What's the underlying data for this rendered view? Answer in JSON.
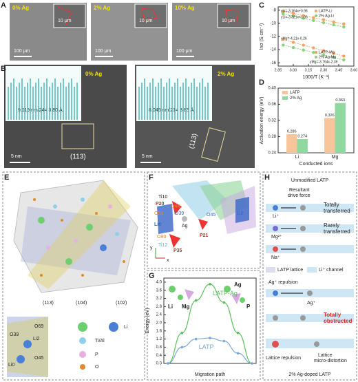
{
  "panels": {
    "letters": [
      "A",
      "B",
      "C",
      "D",
      "E",
      "F",
      "G",
      "H"
    ],
    "a": {
      "labels": [
        "0% Ag",
        "2% Ag",
        "10% Ag"
      ],
      "inset_scale": "10 μm",
      "scale": "100 μm"
    },
    "b": {
      "labels": [
        "0% Ag",
        "2% Ag"
      ],
      "spacing": [
        "9.119 nm/24= 3.80 Å",
        "8.046 nm/21= 3.83 Å"
      ],
      "scale": "5 nm",
      "plane": "(113)"
    },
    "e": {
      "planes": [
        "(113)",
        "(104)",
        "(102)"
      ],
      "atoms": [
        "O39",
        "Li2",
        "O69",
        "O45",
        "Li0"
      ],
      "legend": [
        "Li",
        "Ti/Al",
        "P",
        "O"
      ]
    },
    "f": {
      "atoms": [
        "Ti10",
        "P20",
        "O44",
        "O53",
        "Li0",
        "O39",
        "O45",
        "Li2",
        "Ag",
        "P21",
        "O90",
        "P35",
        "Ti12"
      ],
      "axes": [
        "y",
        "x"
      ]
    },
    "g": {
      "labels": [
        "Li",
        "Mg",
        "Ag",
        "P"
      ]
    },
    "h": {
      "title": "Unmodified LATP",
      "force": [
        "Resultant",
        "drive force"
      ],
      "ions": [
        "Li⁺",
        "Mg²⁺",
        "Na⁺"
      ],
      "outcomes": [
        [
          "Totally",
          "transferred"
        ],
        [
          "Rarely",
          "transferred"
        ]
      ],
      "legend": [
        "LATP lattice",
        "Li⁺ channel"
      ],
      "repulsion": "Ag⁺ repulsion",
      "ag": "Ag⁺",
      "obstructed": [
        "Totally",
        "obstructed"
      ],
      "lattice_repulsion": "Lattice repulsion",
      "distortion": [
        "Lattice",
        "micro-distortion"
      ],
      "footer": "2% Ag-doped LATP"
    }
  },
  "chart_data": [
    {
      "type": "scatter",
      "xlabel": "1000/T (K⁻¹)",
      "ylabel": "lnσ (S cm⁻¹)",
      "x": [
        2.9,
        3.0,
        3.1,
        3.2,
        3.3,
        3.4,
        3.5
      ],
      "xlim": [
        2.85,
        3.6
      ],
      "xticks": [
        2.85,
        {
          "value": 3.0,
          "label": "3.00"
        },
        3.15,
        {
          "value": 3.3,
          "label": "3.30"
        },
        3.45,
        {
          "value": 3.6,
          "label": "3.60"
        }
      ],
      "ylim": [
        -16.5,
        -7.5
      ],
      "yticks": [
        -16,
        -14,
        -12,
        -10,
        -8
      ],
      "annotations": [
        "yLi=-3.164x+0.98",
        "yLi=-3.321x+1.06",
        "yMg=-4.21x-0.26",
        "yMg=-3.764x-2.39"
      ],
      "series": [
        {
          "name": "LATP-Li",
          "color": "#f4a261",
          "values": [
            -8.2,
            -8.51,
            -8.83,
            -9.14,
            -9.46,
            -9.78,
            -10.09
          ]
        },
        {
          "name": "2% Ag-Li",
          "color": "#8ccf7e",
          "values": [
            -8.57,
            -8.9,
            -9.24,
            -9.57,
            -9.9,
            -10.23,
            -10.56
          ]
        },
        {
          "name": "LATP-Mg",
          "color": "#f4a261",
          "values": [
            -12.47,
            -12.89,
            -13.31,
            -13.73,
            -14.15,
            -14.57,
            -14.99
          ]
        },
        {
          "name": "2% Ag-Mg",
          "color": "#8ccf7e",
          "values": [
            -13.31,
            -13.68,
            -14.06,
            -14.43,
            -14.81,
            -15.19,
            -15.56
          ]
        }
      ]
    },
    {
      "type": "bar",
      "xlabel": "Conducted ions",
      "ylabel": "Activation energy (eV)",
      "categories": [
        "Li",
        "Mg"
      ],
      "ylim": [
        0.24,
        0.4
      ],
      "yticks": [
        0.24,
        0.28,
        0.32,
        0.36,
        {
          "value": 0.4,
          "label": "0.40"
        }
      ],
      "series": [
        {
          "name": "LATP",
          "color": "#f8c59a",
          "values": [
            0.286,
            0.326
          ]
        },
        {
          "name": "2% Ag",
          "color": "#8fd9a0",
          "values": [
            0.274,
            0.363
          ]
        }
      ]
    },
    {
      "type": "line",
      "xlabel": "Migration path",
      "ylabel": "Energy (eV)",
      "categories": [
        null,
        null,
        null,
        null,
        null,
        null,
        null
      ],
      "ylim": [
        0,
        4.2
      ],
      "yticks": [
        {
          "value": 0,
          "label": "0.0"
        },
        0.4,
        0.8,
        1.2,
        1.6,
        {
          "value": 2,
          "label": "2.0"
        },
        2.4,
        2.8,
        3.2,
        3.6,
        {
          "value": 4,
          "label": "4.0"
        }
      ],
      "series": [
        {
          "name": "LATP-Ag",
          "color": "#5cbf5c",
          "values": [
            0,
            1.5,
            3.1,
            3.9,
            3.0,
            1.5,
            0
          ]
        },
        {
          "name": "LATP",
          "color": "#7aa7d9",
          "values": [
            0,
            0.8,
            1.2,
            1.25,
            1.1,
            0.5,
            0
          ]
        }
      ]
    }
  ]
}
